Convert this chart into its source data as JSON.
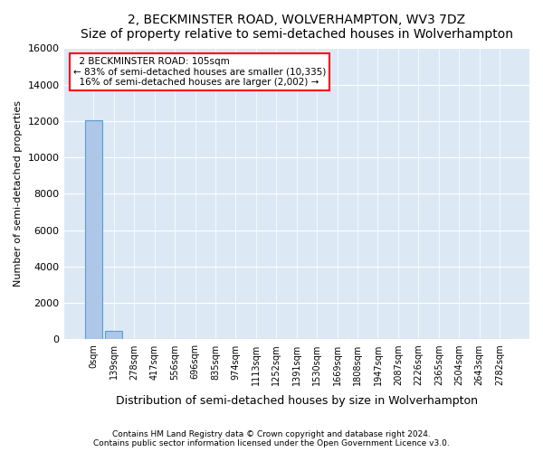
{
  "title": "2, BECKMINSTER ROAD, WOLVERHAMPTON, WV3 7DZ",
  "subtitle": "Size of property relative to semi-detached houses in Wolverhampton",
  "xlabel": "Distribution of semi-detached houses by size in Wolverhampton",
  "ylabel": "Number of semi-detached properties",
  "bin_labels": [
    "0sqm",
    "139sqm",
    "278sqm",
    "417sqm",
    "556sqm",
    "696sqm",
    "835sqm",
    "974sqm",
    "1113sqm",
    "1252sqm",
    "1391sqm",
    "1530sqm",
    "1669sqm",
    "1808sqm",
    "1947sqm",
    "2087sqm",
    "2226sqm",
    "2365sqm",
    "2504sqm",
    "2643sqm",
    "2782sqm"
  ],
  "bar_values": [
    12050,
    480,
    15,
    5,
    2,
    1,
    1,
    1,
    0,
    0,
    0,
    0,
    0,
    0,
    0,
    0,
    0,
    0,
    0,
    0,
    0
  ],
  "bar_color": "#aec6e8",
  "bar_edge_color": "#5a9ed1",
  "property_label": "2 BECKMINSTER ROAD: 105sqm",
  "pct_smaller": 83,
  "count_smaller": 10335,
  "pct_larger": 16,
  "count_larger": 2002,
  "ylim": [
    0,
    16000
  ],
  "yticks": [
    0,
    2000,
    4000,
    6000,
    8000,
    10000,
    12000,
    14000,
    16000
  ],
  "background_color": "#dce9f5",
  "footer_line1": "Contains HM Land Registry data © Crown copyright and database right 2024.",
  "footer_line2": "Contains public sector information licensed under the Open Government Licence v3.0."
}
